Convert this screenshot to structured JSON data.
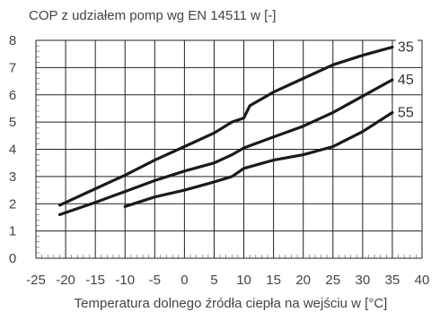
{
  "chart_data": {
    "type": "line",
    "title": "COP z udziałem pomp wg EN 14511 w [-]",
    "xlabel": "Temperatura dolnego źródła ciepła na wejściu w [°C]",
    "ylabel": "",
    "xlim": [
      -25,
      40
    ],
    "ylim": [
      0,
      8
    ],
    "x_ticks": [
      -25,
      -20,
      -15,
      -10,
      -5,
      0,
      5,
      10,
      15,
      20,
      25,
      30,
      35,
      40
    ],
    "x_tick_labels": [
      "-25",
      "-20",
      "-15",
      "-10",
      "-5",
      "0",
      "5",
      "10",
      "15",
      "20",
      "25",
      "30",
      "35",
      "40"
    ],
    "y_ticks": [
      0,
      1,
      2,
      3,
      4,
      5,
      6,
      7,
      8
    ],
    "y_tick_labels": [
      "0",
      "1",
      "2",
      "3",
      "4",
      "5",
      "6",
      "7",
      "8"
    ],
    "grid": true,
    "line_color": "#1a1a1a",
    "series": [
      {
        "name": "35",
        "points": [
          [
            -21,
            1.95
          ],
          [
            -15,
            2.55
          ],
          [
            -10,
            3.05
          ],
          [
            -5,
            3.6
          ],
          [
            0,
            4.1
          ],
          [
            5,
            4.6
          ],
          [
            8,
            5.0
          ],
          [
            10,
            5.15
          ],
          [
            11,
            5.6
          ],
          [
            15,
            6.1
          ],
          [
            20,
            6.6
          ],
          [
            25,
            7.1
          ],
          [
            30,
            7.45
          ],
          [
            35,
            7.75
          ]
        ]
      },
      {
        "name": "45",
        "points": [
          [
            -21,
            1.6
          ],
          [
            -15,
            2.05
          ],
          [
            -10,
            2.45
          ],
          [
            -5,
            2.85
          ],
          [
            0,
            3.2
          ],
          [
            5,
            3.5
          ],
          [
            8,
            3.8
          ],
          [
            10,
            4.05
          ],
          [
            15,
            4.45
          ],
          [
            20,
            4.85
          ],
          [
            25,
            5.35
          ],
          [
            30,
            5.95
          ],
          [
            35,
            6.55
          ]
        ]
      },
      {
        "name": "55",
        "points": [
          [
            -10,
            1.9
          ],
          [
            -5,
            2.25
          ],
          [
            0,
            2.5
          ],
          [
            5,
            2.8
          ],
          [
            8,
            3.0
          ],
          [
            10,
            3.3
          ],
          [
            15,
            3.6
          ],
          [
            20,
            3.8
          ],
          [
            25,
            4.1
          ],
          [
            30,
            4.65
          ],
          [
            35,
            5.35
          ]
        ]
      }
    ]
  }
}
